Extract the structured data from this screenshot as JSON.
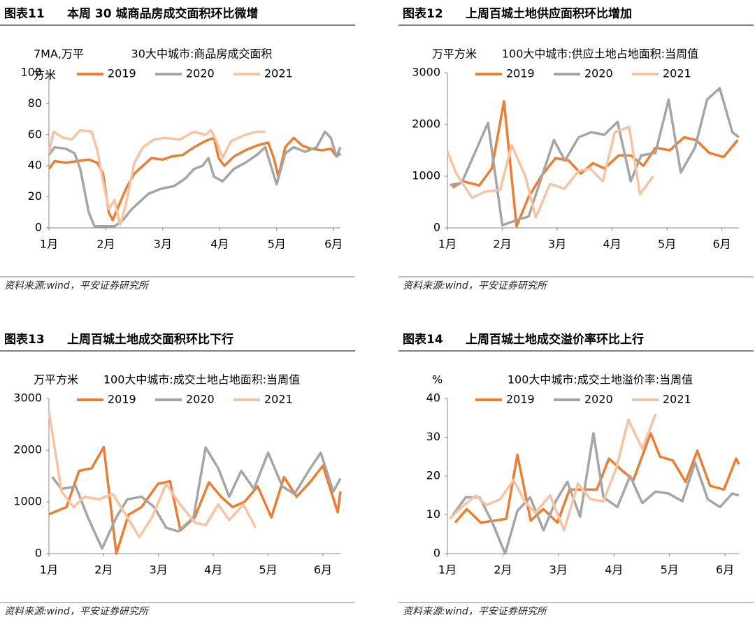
{
  "chart_data": [
    {
      "type": "line",
      "figure_label": "图表11",
      "figure_title": "本周 30 城商品房成交面积环比微增",
      "title": "30大中城市:商品房成交面积",
      "ylabel": [
        "7MA,万平",
        "方米"
      ],
      "source": "资料来源:wind，平安证券研究所",
      "xlim": [
        1,
        6.12
      ],
      "xticks": [
        {
          "value": 1,
          "label": "1月"
        },
        {
          "value": 2,
          "label": "2月"
        },
        {
          "value": 3,
          "label": "3月"
        },
        {
          "value": 4,
          "label": "4月"
        },
        {
          "value": 5,
          "label": "5月"
        },
        {
          "value": 6,
          "label": "6月"
        }
      ],
      "ylim": [
        0,
        100
      ],
      "yticks": [
        0,
        20,
        40,
        60,
        80,
        100
      ],
      "grid": false,
      "series": [
        {
          "name": "2019",
          "color": "#ed7d31",
          "x": [
            1.0,
            1.1,
            1.3,
            1.5,
            1.7,
            1.85,
            1.95,
            2.05,
            2.12,
            2.2,
            2.35,
            2.5,
            2.65,
            2.8,
            3.0,
            3.15,
            3.35,
            3.55,
            3.75,
            3.9,
            3.98,
            4.08,
            4.25,
            4.45,
            4.65,
            4.85,
            4.95,
            5.03,
            5.15,
            5.3,
            5.45,
            5.6,
            5.8,
            5.95,
            6.05,
            6.12
          ],
          "values": [
            38,
            43,
            42,
            43,
            44,
            42,
            35,
            10,
            5,
            12,
            25,
            35,
            40,
            45,
            44,
            46,
            47,
            52,
            56,
            58,
            45,
            40,
            46,
            50,
            53,
            55,
            45,
            33,
            52,
            58,
            53,
            51,
            50,
            51,
            46,
            48
          ]
        },
        {
          "name": "2020",
          "color": "#a5a5a5",
          "x": [
            1.0,
            1.1,
            1.3,
            1.45,
            1.55,
            1.7,
            1.8,
            2.0,
            2.15,
            2.3,
            2.45,
            2.6,
            2.75,
            2.95,
            3.2,
            3.4,
            3.55,
            3.7,
            3.8,
            3.9,
            4.05,
            4.25,
            4.45,
            4.65,
            4.8,
            4.9,
            5.0,
            5.15,
            5.3,
            5.5,
            5.7,
            5.85,
            5.95,
            6.05,
            6.12
          ],
          "values": [
            47,
            52,
            51,
            48,
            38,
            10,
            1,
            1,
            1,
            5,
            12,
            17,
            22,
            25,
            27,
            32,
            38,
            40,
            45,
            33,
            30,
            38,
            42,
            47,
            52,
            40,
            28,
            48,
            52,
            49,
            52,
            62,
            58,
            46,
            52
          ]
        },
        {
          "name": "2021",
          "color": "#f8c3a3",
          "x": [
            1.0,
            1.08,
            1.25,
            1.4,
            1.55,
            1.75,
            1.85,
            1.95,
            2.05,
            2.15,
            2.25,
            2.35,
            2.5,
            2.65,
            2.85,
            3.05,
            3.3,
            3.55,
            3.75,
            3.85,
            3.95,
            4.05,
            4.2,
            4.45,
            4.65,
            4.8
          ],
          "values": [
            48,
            62,
            58,
            57,
            63,
            62,
            50,
            30,
            12,
            18,
            2,
            15,
            42,
            52,
            57,
            58,
            57,
            62,
            60,
            63,
            55,
            45,
            56,
            60,
            62,
            62
          ]
        }
      ]
    },
    {
      "type": "line",
      "figure_label": "图表12",
      "figure_title": "上周百城土地供应面积环比增加",
      "title": "100大中城市:供应土地占地面积:当周值",
      "ylabel": [
        "万平方米"
      ],
      "source": "资料来源:wind，平安证券研究所",
      "xlim": [
        1,
        6.31
      ],
      "xticks": [
        {
          "value": 1,
          "label": "1月"
        },
        {
          "value": 2,
          "label": "2月"
        },
        {
          "value": 3,
          "label": "3月"
        },
        {
          "value": 4,
          "label": "4月"
        },
        {
          "value": 5,
          "label": "5月"
        },
        {
          "value": 6,
          "label": "6月"
        }
      ],
      "ylim": [
        0,
        3000
      ],
      "yticks": [
        0,
        1000,
        2000,
        3000
      ],
      "grid": false,
      "series": [
        {
          "name": "2019",
          "color": "#ed7d31",
          "x": [
            1.09,
            1.29,
            1.58,
            1.81,
            2.03,
            2.26,
            2.48,
            2.71,
            2.97,
            3.21,
            3.43,
            3.65,
            3.86,
            4.12,
            4.34,
            4.57,
            4.79,
            5.05,
            5.31,
            5.53,
            5.77,
            6.03,
            6.29
          ],
          "values": [
            780,
            900,
            820,
            1150,
            2450,
            30,
            600,
            1000,
            1350,
            1300,
            1050,
            1250,
            1150,
            1400,
            1400,
            1200,
            1550,
            1500,
            1750,
            1700,
            1450,
            1370,
            1700
          ]
        },
        {
          "name": "2020",
          "color": "#a5a5a5",
          "x": [
            1.05,
            1.26,
            1.74,
            2.0,
            2.26,
            2.48,
            2.94,
            3.14,
            3.39,
            3.62,
            3.86,
            4.1,
            4.34,
            4.53,
            4.79,
            5.03,
            5.25,
            5.51,
            5.73,
            5.96,
            6.19,
            6.31
          ],
          "values": [
            830,
            870,
            2030,
            50,
            150,
            220,
            1700,
            1300,
            1750,
            1850,
            1800,
            2050,
            900,
            1400,
            1450,
            2480,
            1070,
            1550,
            2480,
            2700,
            1850,
            1750
          ]
        },
        {
          "name": "2021",
          "color": "#f8c3a3",
          "x": [
            1.0,
            1.16,
            1.45,
            1.68,
            1.96,
            2.17,
            2.42,
            2.61,
            2.87,
            3.13,
            3.39,
            3.6,
            3.83,
            4.05,
            4.31,
            4.51,
            4.75
          ],
          "values": [
            1480,
            1050,
            580,
            700,
            730,
            1600,
            1000,
            200,
            850,
            760,
            1100,
            1150,
            900,
            1850,
            1950,
            650,
            1000
          ]
        }
      ]
    },
    {
      "type": "line",
      "figure_label": "图表13",
      "figure_title": "上周百城土地成交面积环比下行",
      "title": "100大中城市:成交土地占地面积:当周值",
      "ylabel": [
        "万平方米"
      ],
      "source": "资料来源:wind，平安证券研究所",
      "xlim": [
        1,
        6.32
      ],
      "xticks": [
        {
          "value": 1,
          "label": "1月"
        },
        {
          "value": 2,
          "label": "2月"
        },
        {
          "value": 3,
          "label": "3月"
        },
        {
          "value": 4,
          "label": "4月"
        },
        {
          "value": 5,
          "label": "5月"
        },
        {
          "value": 6,
          "label": "6月"
        }
      ],
      "ylim": [
        0,
        3000
      ],
      "yticks": [
        0,
        1000,
        2000,
        3000
      ],
      "grid": false,
      "series": [
        {
          "name": "2019",
          "color": "#ed7d31",
          "x": [
            1.0,
            1.32,
            1.55,
            1.78,
            2.0,
            2.23,
            2.45,
            2.69,
            2.99,
            3.21,
            3.4,
            3.66,
            3.92,
            4.14,
            4.35,
            4.57,
            4.81,
            5.06,
            5.29,
            5.52,
            5.78,
            6.0,
            6.27,
            6.32
          ],
          "values": [
            760,
            900,
            1600,
            1650,
            2060,
            0,
            750,
            900,
            1350,
            1400,
            450,
            700,
            1380,
            1100,
            900,
            1000,
            1300,
            700,
            1480,
            1100,
            1400,
            1700,
            800,
            1200
          ]
        },
        {
          "name": "2020",
          "color": "#a5a5a5",
          "x": [
            1.06,
            1.23,
            1.49,
            1.71,
            1.97,
            2.23,
            2.43,
            2.69,
            2.92,
            3.14,
            3.36,
            3.64,
            3.86,
            4.09,
            4.29,
            4.51,
            4.74,
            5.0,
            5.26,
            5.48,
            5.74,
            5.96,
            6.19,
            6.32
          ],
          "values": [
            1480,
            1250,
            1300,
            700,
            100,
            700,
            1050,
            1100,
            900,
            500,
            430,
            700,
            2050,
            1650,
            1100,
            1600,
            1250,
            1950,
            1300,
            1150,
            1600,
            1950,
            1200,
            1450
          ]
        },
        {
          "name": "2021",
          "color": "#f8c3a3",
          "x": [
            1.0,
            1.23,
            1.45,
            1.65,
            1.91,
            2.17,
            2.43,
            2.65,
            2.88,
            3.14,
            3.36,
            3.66,
            3.86,
            4.09,
            4.29,
            4.55,
            4.77
          ],
          "values": [
            2750,
            1200,
            900,
            1100,
            1050,
            1150,
            700,
            320,
            700,
            1350,
            1000,
            600,
            550,
            950,
            650,
            950,
            500
          ]
        }
      ]
    },
    {
      "type": "line",
      "figure_label": "图表14",
      "figure_title": "上周百城土地成交溢价率环比上行",
      "title": "100大中城市:成交土地溢价率:当周值",
      "ylabel": [
        "%"
      ],
      "source": "资料来源:wind，平安证券研究所",
      "xlim": [
        1,
        6.25
      ],
      "xticks": [
        {
          "value": 1,
          "label": "1月"
        },
        {
          "value": 2,
          "label": "2月"
        },
        {
          "value": 3,
          "label": "3月"
        },
        {
          "value": 4,
          "label": "4月"
        },
        {
          "value": 5,
          "label": "5月"
        },
        {
          "value": 6,
          "label": "6月"
        }
      ],
      "ylim": [
        0,
        40
      ],
      "yticks": [
        0,
        10,
        20,
        30,
        40
      ],
      "grid": false,
      "series": [
        {
          "name": "2019",
          "color": "#ed7d31",
          "x": [
            1.14,
            1.35,
            1.6,
            1.85,
            2.06,
            2.26,
            2.5,
            2.73,
            2.98,
            3.2,
            3.48,
            3.69,
            3.91,
            4.14,
            4.35,
            4.66,
            4.83,
            5.06,
            5.29,
            5.5,
            5.73,
            5.98,
            6.2,
            6.25
          ],
          "values": [
            8,
            11.5,
            8,
            8.5,
            9,
            25.5,
            8.5,
            11.5,
            8,
            16.5,
            16.5,
            16.5,
            24.5,
            21.5,
            19,
            31,
            25,
            24,
            18.5,
            26.5,
            17.5,
            16.5,
            24.5,
            23
          ]
        },
        {
          "name": "2020",
          "color": "#a5a5a5",
          "x": [
            1.1,
            1.33,
            1.58,
            1.81,
            2.04,
            2.26,
            2.49,
            2.73,
            2.95,
            3.16,
            3.39,
            3.63,
            3.81,
            4.06,
            4.29,
            4.51,
            4.75,
            4.98,
            5.23,
            5.46,
            5.69,
            5.91,
            6.13,
            6.25
          ],
          "values": [
            10,
            14.5,
            14.5,
            8,
            0,
            11,
            14.5,
            6,
            13.5,
            18.5,
            9.5,
            31,
            14.5,
            12,
            20,
            13,
            16,
            15.5,
            13.5,
            23.5,
            14,
            12,
            15.5,
            15
          ]
        },
        {
          "name": "2021",
          "color": "#f8c3a3",
          "x": [
            1.04,
            1.26,
            1.51,
            1.7,
            1.95,
            2.19,
            2.39,
            2.58,
            2.85,
            3.1,
            3.35,
            3.58,
            3.81,
            4.04,
            4.26,
            4.51,
            4.75
          ],
          "values": [
            9,
            12,
            15,
            12.5,
            14,
            19,
            13.5,
            10.5,
            15,
            6,
            18,
            14,
            13.5,
            22,
            34.5,
            27,
            36
          ]
        }
      ]
    }
  ]
}
